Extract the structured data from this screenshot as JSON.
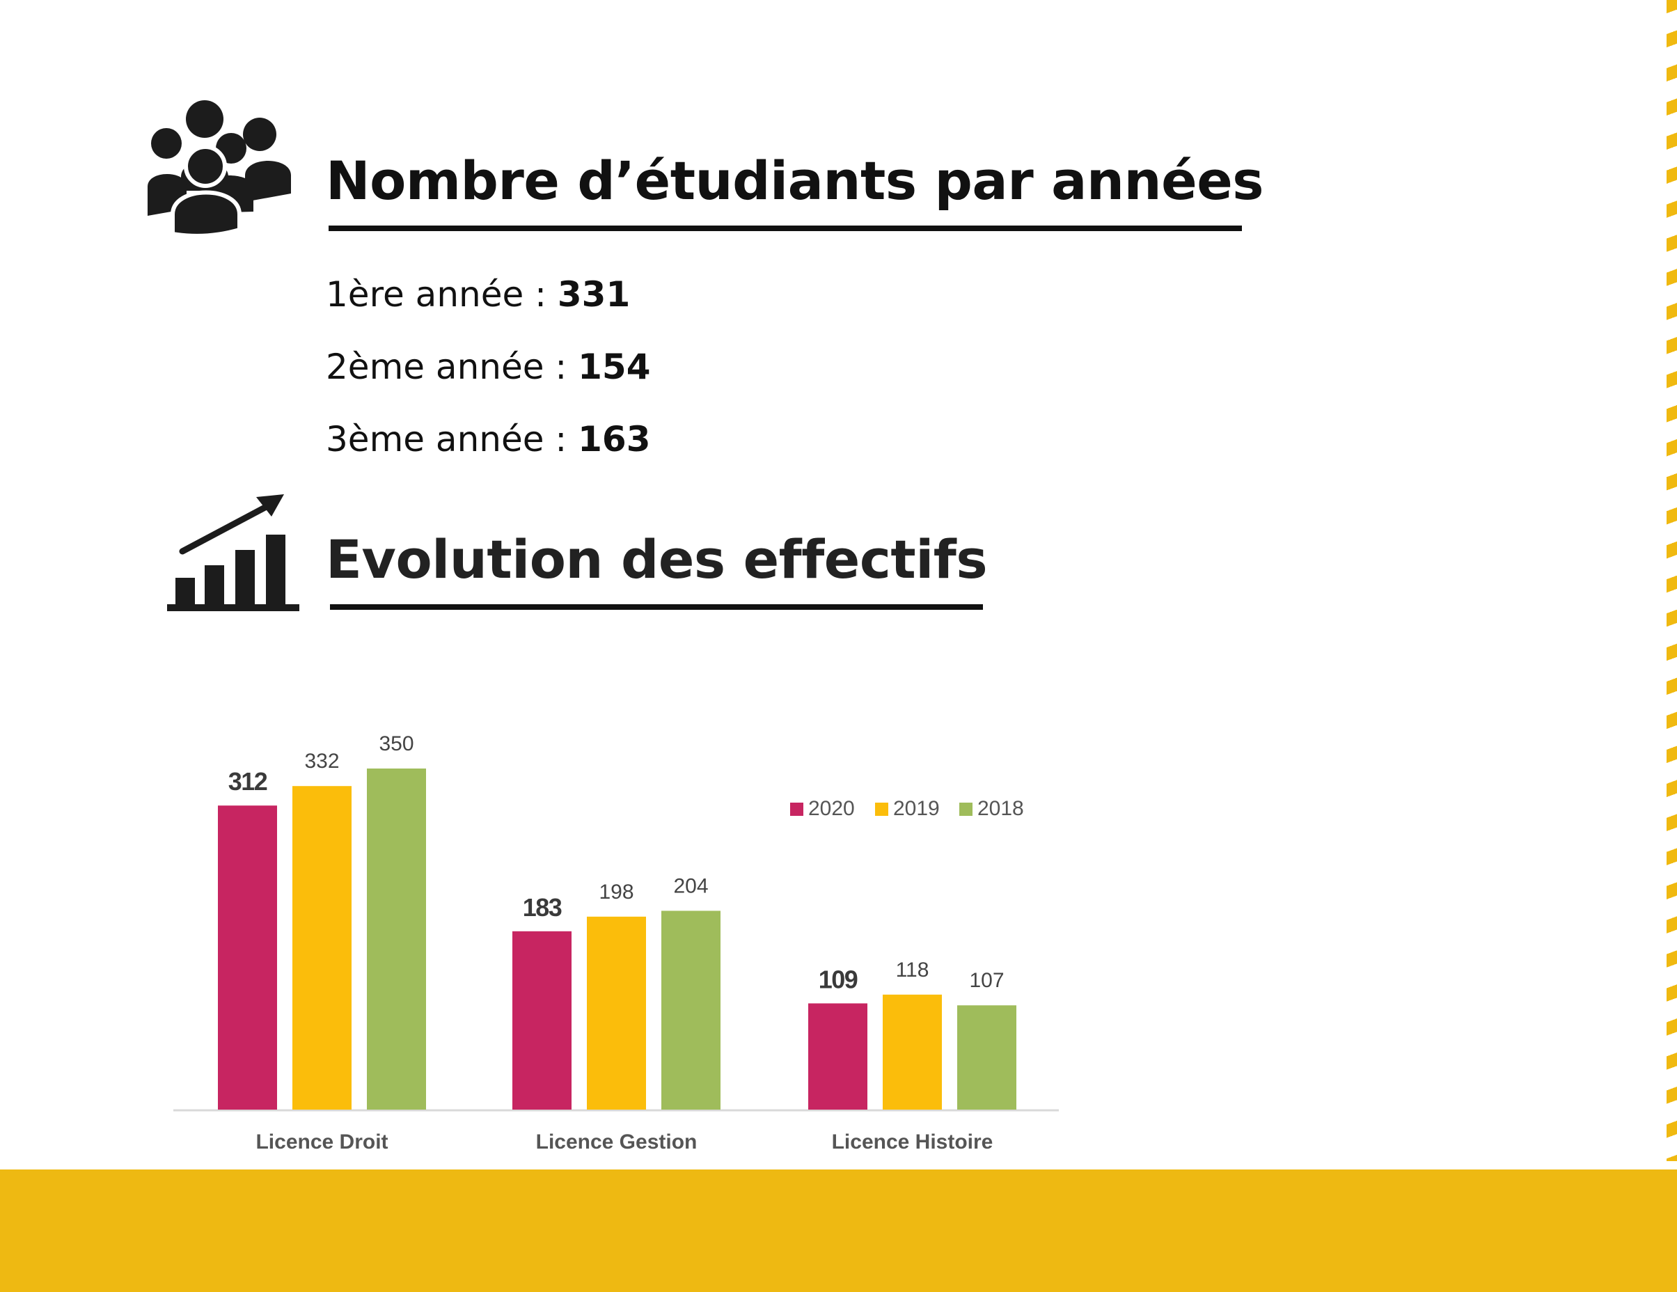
{
  "section1": {
    "icon": "people-group-icon",
    "title": "Nombre d’étudiants par années",
    "stats": [
      {
        "label": "1ère année : ",
        "value": "331"
      },
      {
        "label": "2ème année : ",
        "value": "154"
      },
      {
        "label": "3ème année : ",
        "value": "163"
      }
    ]
  },
  "section2": {
    "icon": "growth-chart-icon",
    "title": "Evolution des effectifs"
  },
  "colors": {
    "accent_yellow": "#eeb912",
    "series_2020": "#c72561",
    "series_2019": "#fbbd0b",
    "series_2018": "#9fbc5b",
    "text_dark": "#111111"
  },
  "chart_data": {
    "type": "bar",
    "title": "",
    "xlabel": "",
    "ylabel": "",
    "categories": [
      "Licence Droit",
      "Licence Gestion",
      "Licence Histoire"
    ],
    "series": [
      {
        "name": "2020",
        "values": [
          312,
          183,
          109
        ]
      },
      {
        "name": "2019",
        "values": [
          332,
          198,
          118
        ]
      },
      {
        "name": "2018",
        "values": [
          350,
          204,
          107
        ]
      }
    ],
    "ylim": [
      0,
      350
    ],
    "grid": false,
    "legend": "right"
  }
}
